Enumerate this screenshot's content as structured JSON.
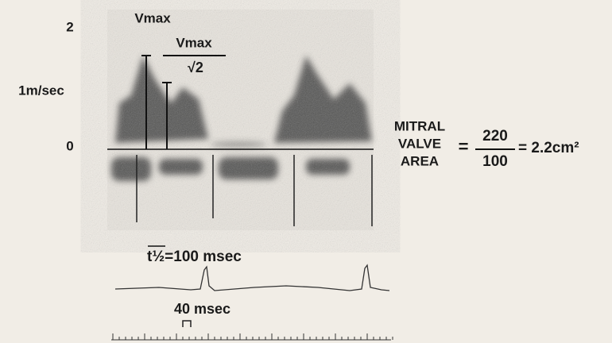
{
  "axis_labels": {
    "top": "2",
    "middle": "1m/sec",
    "zero": "0"
  },
  "vmax_label": "Vmax",
  "vmax_fraction": {
    "numerator": "Vmax",
    "denominator": "√2"
  },
  "mitral": {
    "lines": [
      "MITRAL",
      "VALVE",
      "AREA"
    ],
    "equals": "=",
    "numerator": "220",
    "denominator": "100",
    "result": "= 2.2cm²"
  },
  "half_time": "t½=100 msec",
  "time_scale": "40 msec"
}
